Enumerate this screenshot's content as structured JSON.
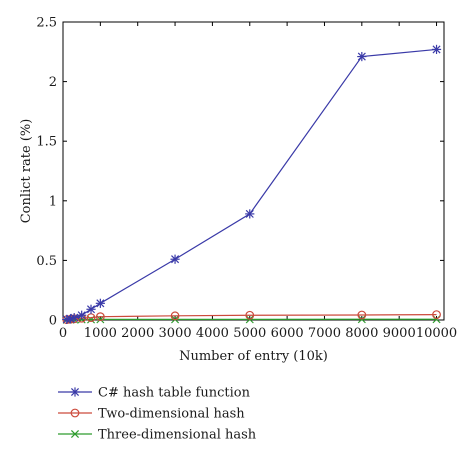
{
  "chart_data": {
    "type": "line",
    "xlabel": "Number of entry (10k)",
    "ylabel": "Conlict rate (%)",
    "xlim": [
      0,
      10200
    ],
    "ylim": [
      0,
      2.5
    ],
    "xticks": [
      0,
      1000,
      2000,
      3000,
      4000,
      5000,
      6000,
      7000,
      8000,
      9000,
      10000
    ],
    "yticks": [
      0,
      0.5,
      1,
      1.5,
      2,
      2.5
    ],
    "xtick_labels": [
      "0",
      "1000",
      "2000",
      "3000",
      "4000",
      "5000",
      "6000",
      "7000",
      "8000",
      "9000",
      "10000"
    ],
    "ytick_labels": [
      "0",
      "0.5",
      "1",
      "1.5",
      "2",
      "2.5"
    ],
    "grid": false,
    "legend_position": "bottom-left, outside plot",
    "series": [
      {
        "name": "C# hash table function",
        "color": "#3a3aa8",
        "marker": "asterisk",
        "x": [
          100,
          200,
          300,
          500,
          750,
          1000,
          3000,
          5000,
          8000,
          10000
        ],
        "y": [
          0.005,
          0.01,
          0.02,
          0.04,
          0.09,
          0.14,
          0.51,
          0.89,
          2.21,
          2.27
        ]
      },
      {
        "name": "Two-dimensional hash",
        "color": "#cc4a3c",
        "marker": "circle",
        "x": [
          100,
          200,
          300,
          500,
          750,
          1000,
          3000,
          5000,
          8000,
          10000
        ],
        "y": [
          0.003,
          0.006,
          0.01,
          0.015,
          0.02,
          0.028,
          0.035,
          0.04,
          0.042,
          0.045
        ]
      },
      {
        "name": "Three-dimensional hash",
        "color": "#2e9c2e",
        "marker": "x",
        "x": [
          100,
          200,
          300,
          500,
          750,
          1000,
          3000,
          5000,
          8000,
          10000
        ],
        "y": [
          0.001,
          0.002,
          0.003,
          0.004,
          0.004,
          0.005,
          0.005,
          0.005,
          0.006,
          0.006
        ]
      }
    ]
  }
}
